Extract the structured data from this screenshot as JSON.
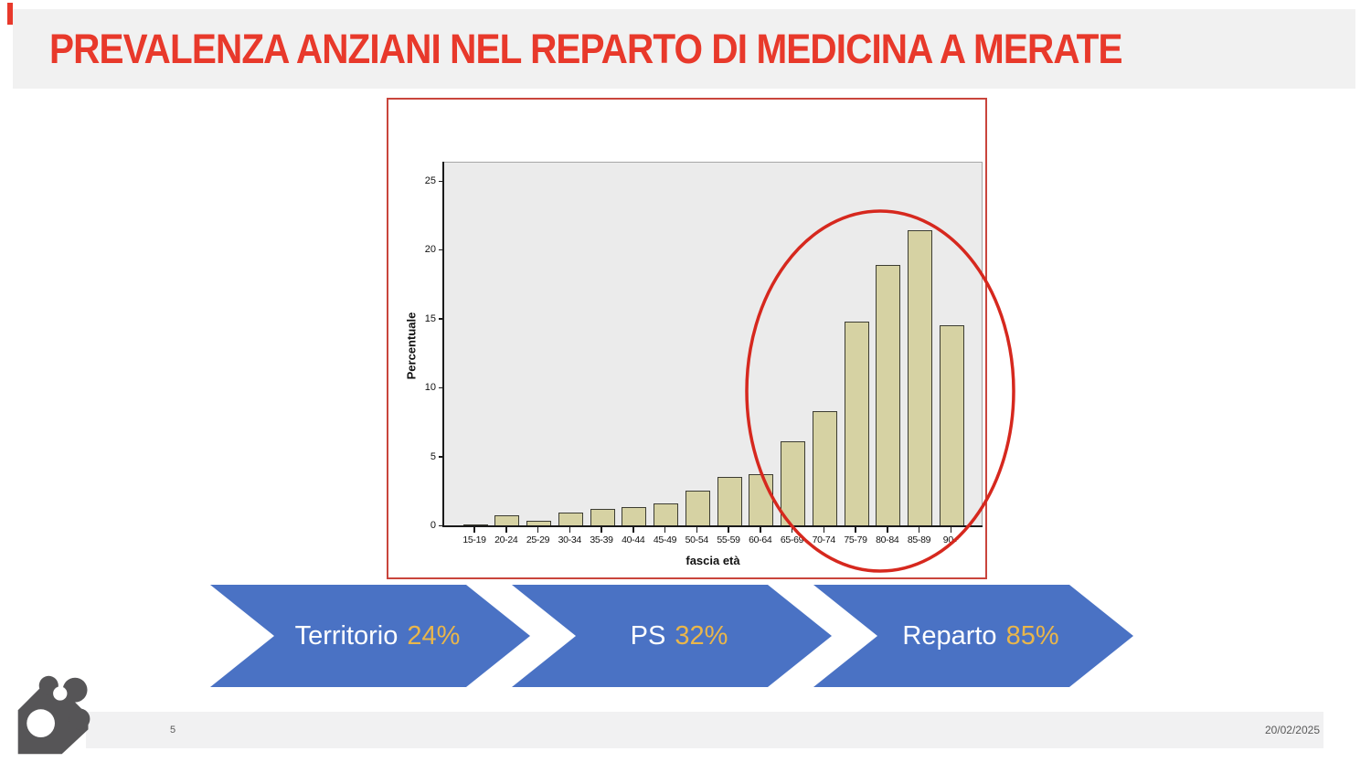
{
  "slide": {
    "title": "PREVALENZA ANZIANI NEL REPARTO DI MEDICINA A MERATE",
    "page_number": "5",
    "date": "20/02/2025"
  },
  "chart_data": {
    "type": "bar",
    "title": "",
    "xlabel": "fascia età",
    "ylabel": "Percentuale",
    "categories": [
      "15-19",
      "20-24",
      "25-29",
      "30-34",
      "35-39",
      "40-44",
      "45-49",
      "50-54",
      "55-59",
      "60-64",
      "65-69",
      "70-74",
      "75-79",
      "80-84",
      "85-89",
      "90+"
    ],
    "values": [
      0.1,
      0.7,
      0.3,
      0.9,
      1.2,
      1.3,
      1.6,
      2.5,
      3.5,
      3.7,
      6.1,
      8.3,
      14.8,
      18.9,
      21.4,
      14.5
    ],
    "ylim": [
      0,
      26.4
    ],
    "yticks": [
      0,
      5,
      10,
      15,
      20,
      25
    ],
    "grid": false,
    "legend": null,
    "bar_color": "#D6D2A3",
    "plot_bg": "#EBEBEB",
    "annotation": "red ellipse highlighting age groups 65-69 through 90+"
  },
  "arrows": [
    {
      "label": "Territorio",
      "value": "24%"
    },
    {
      "label": "PS",
      "value": "32%"
    },
    {
      "label": "Reparto",
      "value": "85%"
    }
  ],
  "colors": {
    "title_red": "#E8392B",
    "frame_red": "#C9453C",
    "ellipse_red": "#D6281E",
    "arrow_blue": "#4A72C4",
    "arrow_gold": "#E9B64B",
    "banner_gray": "#F1F1F1",
    "footer_gray": "#F1F1F2",
    "logo_gray": "#565557"
  }
}
